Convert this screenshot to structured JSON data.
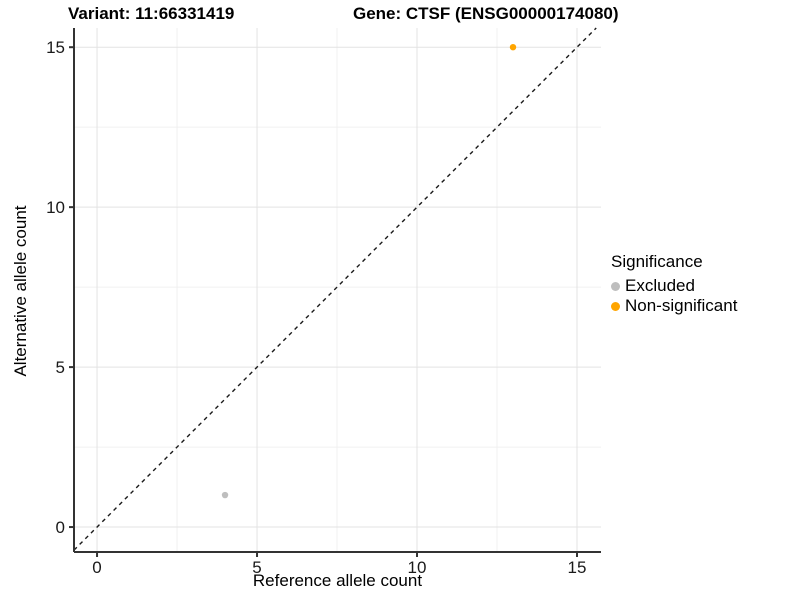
{
  "header": {
    "variant_title": "Variant: 11:66331419",
    "gene_title": "Gene: CTSF (ENSG00000174080)"
  },
  "chart_data": {
    "type": "scatter",
    "title_left": "Variant: 11:66331419",
    "title_right": "Gene: CTSF (ENSG00000174080)",
    "xlabel": "Reference allele count",
    "ylabel": "Alternative allele count",
    "xlim": [
      -0.72,
      15.75
    ],
    "ylim": [
      -0.78,
      15.6
    ],
    "xticks": [
      0,
      5,
      10,
      15
    ],
    "yticks": [
      0,
      5,
      10,
      15
    ],
    "minor_xticks": [
      2.5,
      7.5,
      12.5
    ],
    "minor_yticks": [
      2.5,
      7.5,
      12.5
    ],
    "grid": true,
    "legend_position": "right",
    "reference_line": {
      "type": "identity",
      "slope": 1,
      "intercept": 0,
      "style": "dashed",
      "color": "#1a1a1a"
    },
    "series": [
      {
        "name": "Excluded",
        "color": "#BEBEBE",
        "points": [
          {
            "x": 4,
            "y": 1
          }
        ]
      },
      {
        "name": "Non-significant",
        "color": "#FFA500",
        "points": [
          {
            "x": 13,
            "y": 15
          }
        ]
      }
    ]
  },
  "legend": {
    "title": "Significance",
    "items": [
      {
        "label": "Excluded",
        "color": "#BEBEBE"
      },
      {
        "label": "Non-significant",
        "color": "#FFA500"
      }
    ]
  },
  "style_colors": {
    "grid_major": "#E3E3E3",
    "grid_minor": "#F0F0F0",
    "axis_line": "#333333",
    "tick_text": "#1a1a1a"
  }
}
